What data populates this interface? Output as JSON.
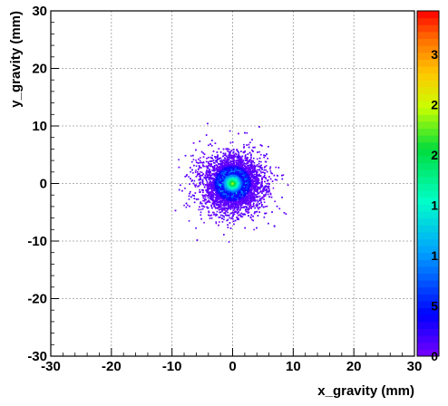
{
  "chart_data": {
    "type": "heatmap",
    "title": "",
    "xlabel": "x_gravity (mm)",
    "ylabel": "y_gravity (mm)",
    "xlim": [
      -30,
      30
    ],
    "ylim": [
      -30,
      30
    ],
    "x_ticks": [
      "-30",
      "-20",
      "-10",
      "0",
      "10",
      "20",
      "30"
    ],
    "y_ticks": [
      "-30",
      "-20",
      "-10",
      "0",
      "10",
      "20",
      "30"
    ],
    "grid": true,
    "distribution": {
      "center": [
        0,
        0
      ],
      "spread_mm": [
        2.3,
        2.3
      ],
      "x_range": [
        -12,
        13
      ],
      "y_range": [
        -12,
        11
      ]
    },
    "z_scale_labels": [
      "3",
      "2",
      "2",
      "1",
      "1",
      "5",
      "0"
    ],
    "palette_colors": [
      "#ff0000",
      "#ff8000",
      "#ffff00",
      "#00ff00",
      "#00ffff",
      "#0000ff",
      "#8000ff"
    ]
  }
}
